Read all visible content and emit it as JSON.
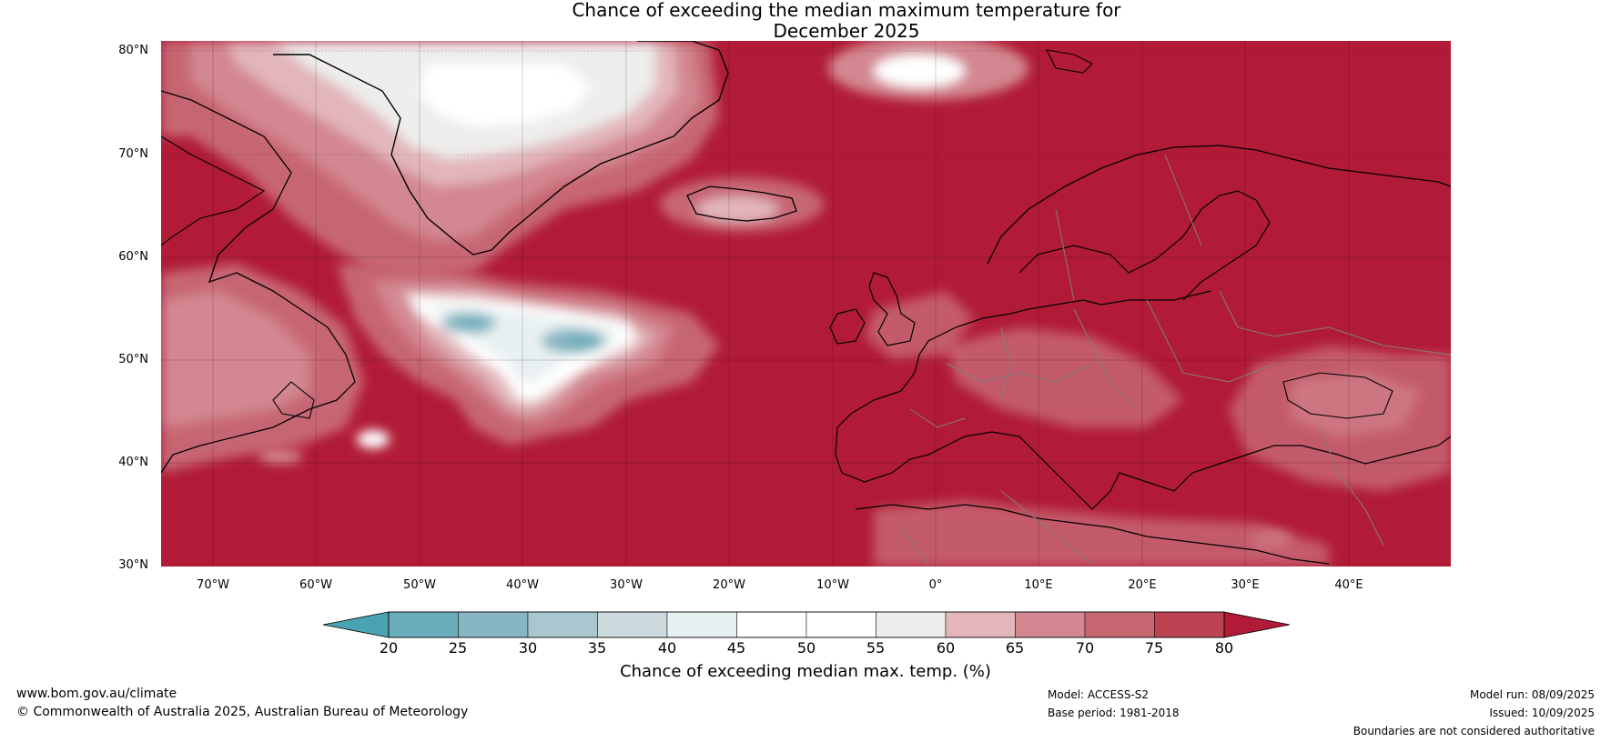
{
  "title_line1": "Chance of exceeding the median maximum temperature for",
  "title_line2": "December 2025",
  "lat_labels": [
    "80°N",
    "70°N",
    "60°N",
    "50°N",
    "40°N",
    "30°N"
  ],
  "lon_labels": [
    "70°W",
    "60°W",
    "50°W",
    "40°W",
    "30°W",
    "20°W",
    "10°W",
    "0°",
    "10°E",
    "20°E",
    "30°E",
    "40°E"
  ],
  "colorbar": {
    "ticks": [
      "20",
      "25",
      "30",
      "35",
      "40",
      "45",
      "50",
      "55",
      "60",
      "65",
      "70",
      "75",
      "80"
    ],
    "colors": [
      "#4aa3b3",
      "#6aaebb",
      "#87b6c2",
      "#a9c7cf",
      "#ccd9dd",
      "#e8f0f2",
      "#ffffff",
      "#ffffff",
      "#ededeb",
      "#e2b6bb",
      "#d38790",
      "#c76673",
      "#bd4353",
      "#b11b37"
    ],
    "title": "Chance of exceeding median max. temp. (%)"
  },
  "footer": {
    "url": "www.bom.gov.au/climate",
    "copyright": "© Commonwealth of Australia 2025, Australian Bureau of Meteorology",
    "model": "Model: ACCESS-S2",
    "base_period": "Base period: 1981-2018",
    "model_run": "Model run: 08/09/2025",
    "issued": "Issued: 10/09/2025",
    "disclaimer": "Boundaries are not considered authoritative"
  },
  "colors": {
    "high": "#b11b37",
    "mid_high": "#c76673",
    "low_mid": "#e2b6bb",
    "neutral": "#ededeb",
    "low": "#6aaebb"
  }
}
